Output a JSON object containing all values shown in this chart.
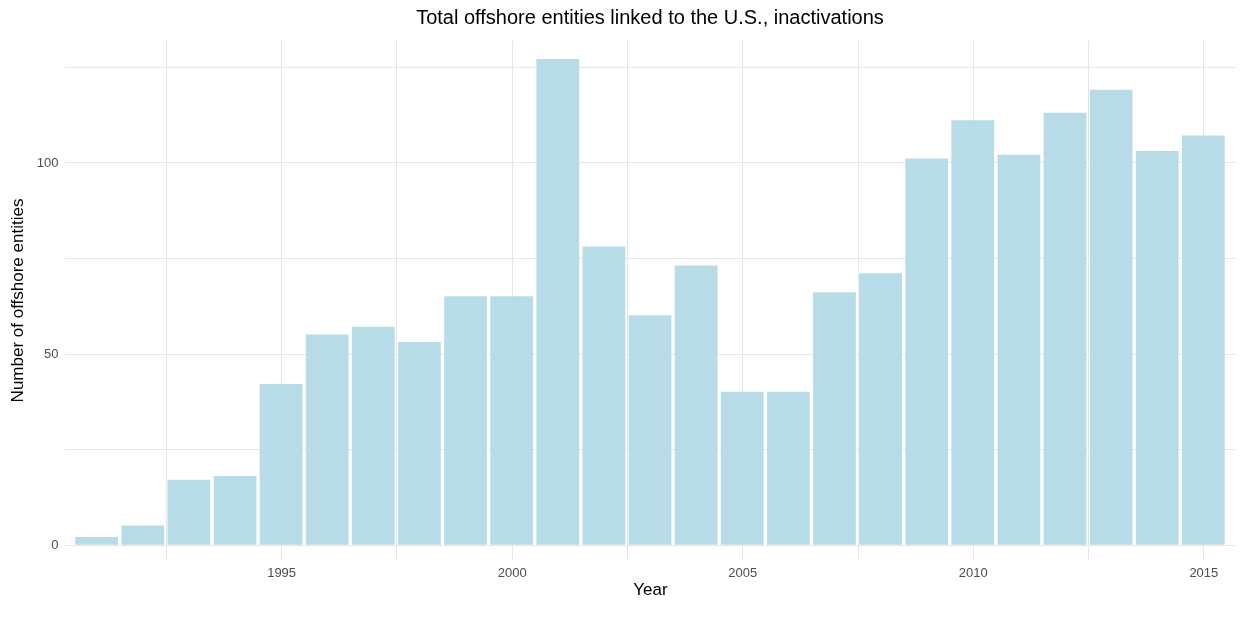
{
  "chart_data": {
    "type": "bar",
    "title": "Total offshore entities linked to the U.S., inactivations",
    "xlabel": "Year",
    "ylabel": "Number of offshore entities",
    "x": [
      1991,
      1992,
      1993,
      1994,
      1995,
      1996,
      1997,
      1998,
      1999,
      2000,
      2001,
      2002,
      2003,
      2004,
      2005,
      2006,
      2007,
      2008,
      2009,
      2010,
      2011,
      2012,
      2013,
      2014,
      2015
    ],
    "values": [
      2,
      5,
      17,
      18,
      42,
      55,
      57,
      53,
      65,
      65,
      127,
      78,
      60,
      73,
      40,
      40,
      66,
      71,
      101,
      111,
      102,
      113,
      119,
      103,
      107
    ],
    "color": "#b7dce8",
    "xlim": [
      1990.4,
      2015.6
    ],
    "xticks": [
      {
        "value": 1992.5,
        "label": null
      },
      1995,
      {
        "value": 1997.5,
        "label": null
      },
      2000,
      {
        "value": 2002.5,
        "label": null
      },
      2005,
      {
        "value": 2007.5,
        "label": null
      },
      2010,
      {
        "value": 2012.5,
        "label": null
      },
      2015
    ],
    "ylim": [
      -4,
      132
    ],
    "yticks": [
      0,
      {
        "value": 25,
        "label": null
      },
      50,
      {
        "value": 75,
        "label": null
      },
      100,
      {
        "value": 125,
        "label": null
      }
    ],
    "grid": true
  }
}
